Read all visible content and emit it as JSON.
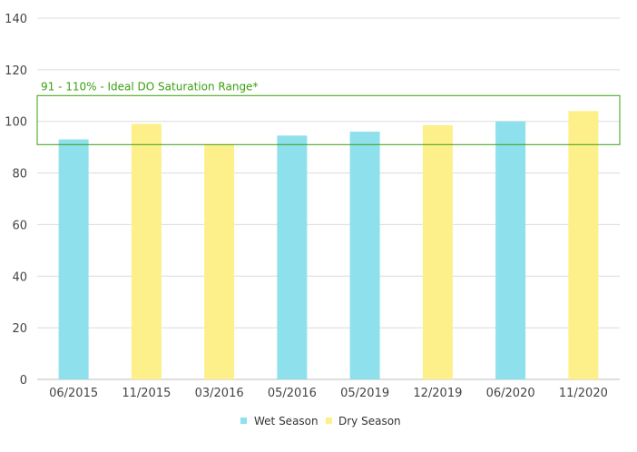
{
  "chart_data": {
    "type": "bar",
    "categories": [
      "06/2015",
      "11/2015",
      "03/2016",
      "05/2016",
      "05/2019",
      "12/2019",
      "06/2020",
      "11/2020"
    ],
    "values": [
      93,
      99,
      91,
      94.5,
      96,
      98.5,
      100,
      104
    ],
    "season": [
      "wet",
      "dry",
      "dry",
      "wet",
      "wet",
      "dry",
      "wet",
      "dry"
    ],
    "ylim": [
      0,
      140
    ],
    "yticks": [
      0,
      20,
      40,
      60,
      80,
      100,
      120,
      140
    ],
    "grid": true,
    "legend_position": "bottom-center",
    "legend": [
      {
        "name": "Wet Season",
        "color": "#8ee0ec"
      },
      {
        "name": "Dry Season",
        "color": "#fdf08a"
      }
    ],
    "reference_band": {
      "low": 91,
      "high": 110,
      "label": "91 - 110% - Ideal DO Saturation Range*",
      "color": "#3aa010"
    }
  }
}
